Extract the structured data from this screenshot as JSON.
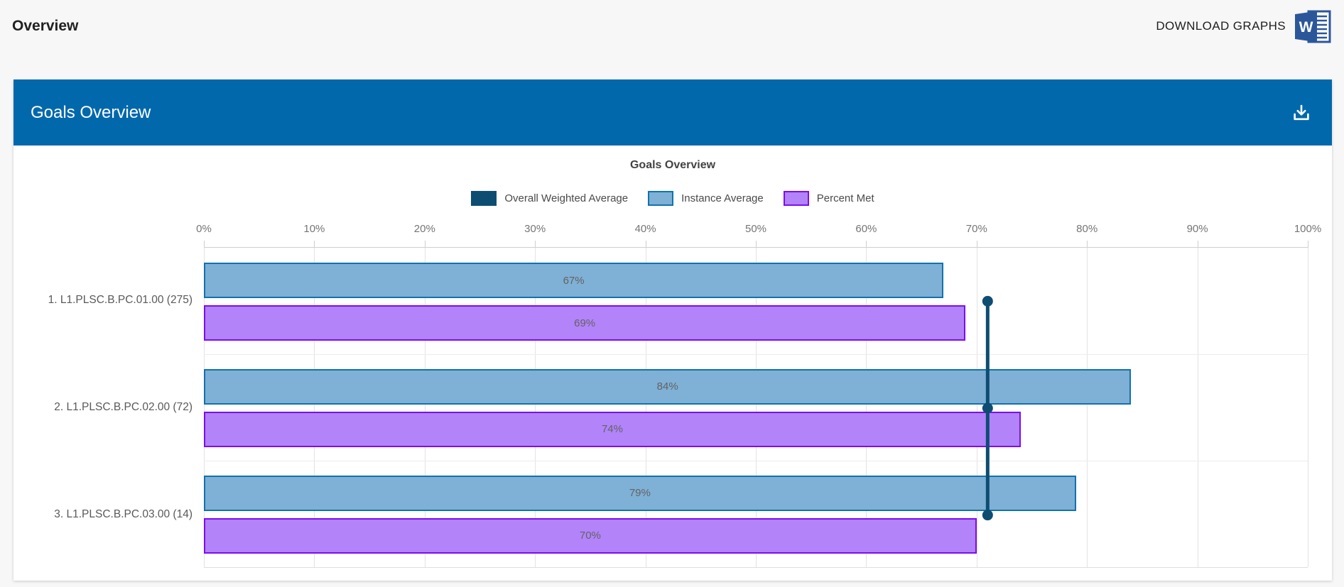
{
  "page": {
    "title": "Overview",
    "download_graphs_label": "DOWNLOAD GRAPHS",
    "word_icon_letter": "W"
  },
  "panel": {
    "title": "Goals Overview"
  },
  "chart_data": {
    "type": "bar",
    "orientation": "horizontal",
    "title": "Goals Overview",
    "categories": [
      "1. L1.PLSC.B.PC.01.00 (275)",
      "2. L1.PLSC.B.PC.02.00 (72)",
      "3. L1.PLSC.B.PC.03.00 (14)"
    ],
    "series": [
      {
        "name": "Overall Weighted Average",
        "render": "line",
        "values": [
          71,
          71,
          71
        ],
        "color": "#0e4d72"
      },
      {
        "name": "Instance Average",
        "render": "bar",
        "values": [
          67,
          84,
          79
        ],
        "fill": "#7fb0d6",
        "border": "#1272ae"
      },
      {
        "name": "Percent Met",
        "render": "bar",
        "values": [
          69,
          74,
          70
        ],
        "fill": "#b383fa",
        "border": "#7c0df2"
      }
    ],
    "value_suffix": "%",
    "axis": {
      "min": 0,
      "max": 100,
      "step": 10,
      "position": "top",
      "tick_labels": [
        "0%",
        "10%",
        "20%",
        "30%",
        "40%",
        "50%",
        "60%",
        "70%",
        "80%",
        "90%",
        "100%"
      ]
    },
    "legend_position": "top",
    "grid": true
  },
  "colors": {
    "panel_header": "#0268ac",
    "overall_weighted_average": "#0e4d72",
    "instance_average_fill": "#7fb0d6",
    "instance_average_border": "#1272ae",
    "percent_met_fill": "#b383fa",
    "percent_met_border": "#7c0df2",
    "word_icon_blue": "#2b579a"
  }
}
